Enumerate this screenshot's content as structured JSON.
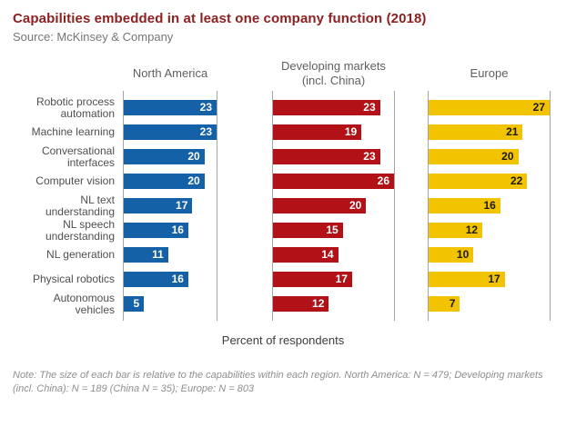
{
  "header": {
    "title": "Capabilities embedded in at least one company function (2018)",
    "source": "Source: McKinsey & Company"
  },
  "chart_data": {
    "type": "bar",
    "orientation": "horizontal",
    "xlabel": "Percent of respondents",
    "scaling": "Each bar scaled relative to the maximum value within its region panel",
    "grid": "off",
    "categories": [
      "Robotic process automation",
      "Machine learning",
      "Conversational interfaces",
      "Computer vision",
      "NL text understanding",
      "NL speech understanding",
      "NL generation",
      "Physical robotics",
      "Autonomous vehicles"
    ],
    "series": [
      {
        "name": "North America",
        "color": "#1561a8",
        "value_label_color": "#ffffff",
        "values": [
          23,
          23,
          20,
          20,
          17,
          16,
          11,
          16,
          5
        ]
      },
      {
        "name": "Developing markets (incl. China)",
        "color": "#b11117",
        "value_label_color": "#ffffff",
        "values": [
          23,
          19,
          23,
          26,
          20,
          15,
          14,
          17,
          12
        ]
      },
      {
        "name": "Europe",
        "color": "#f2c300",
        "value_label_color": "#1a1a1a",
        "values": [
          27,
          21,
          20,
          22,
          16,
          12,
          10,
          17,
          7
        ]
      }
    ]
  },
  "footer": {
    "note_line": "Note: The size of each bar is relative to the capabilities within each region. North America: N = 479; Developing markets (incl. China): N = 189 (China N = 35); Europe: N = 803"
  }
}
